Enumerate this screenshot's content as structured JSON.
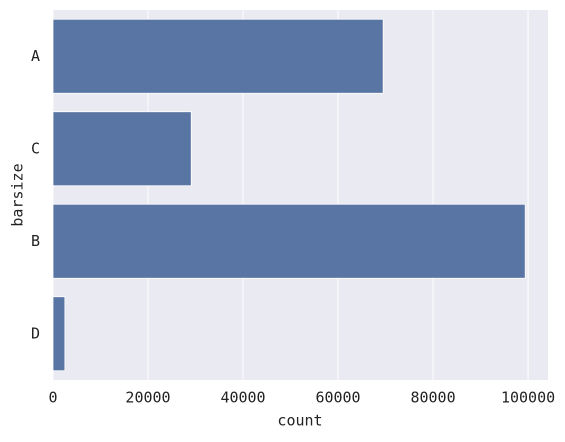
{
  "chart_data": {
    "type": "bar",
    "orientation": "horizontal",
    "x_label": "count",
    "y_label": "barsize",
    "categories": [
      "A",
      "C",
      "B",
      "D"
    ],
    "values": [
      69500,
      29100,
      99400,
      2500
    ],
    "color": "#5975a4",
    "xlim": [
      0,
      104200
    ],
    "xticks": [
      0,
      20000,
      40000,
      60000,
      80000,
      100000
    ],
    "grid": true
  }
}
